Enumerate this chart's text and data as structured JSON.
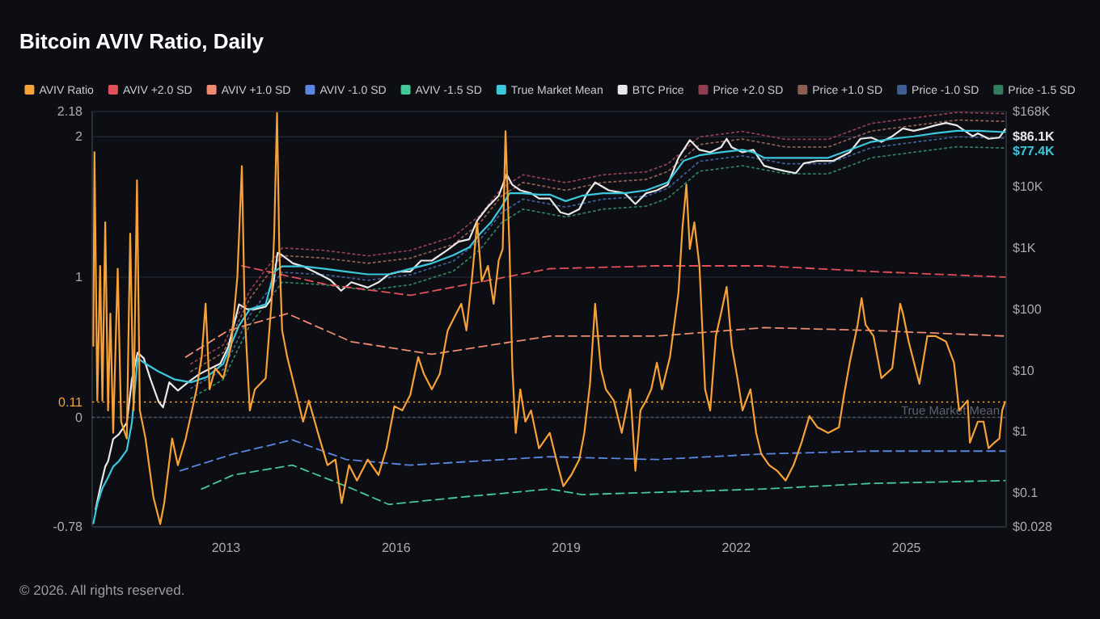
{
  "chart_data": {
    "type": "line",
    "title": "Bitcoin AVIV Ratio, Daily",
    "annotations": [
      "© 2026. All rights reserved."
    ],
    "xlim": [
      2010.64,
      2026.76
    ],
    "xticks": [
      2013,
      2016,
      2019,
      2022,
      2025
    ],
    "ylim": [
      -0.78,
      2.18
    ],
    "yticks": [
      -0.78,
      0,
      1,
      2,
      2.18
    ],
    "y2lim": [
      0.028,
      168000
    ],
    "y2ticks": [
      {
        "value": 0.028,
        "label": "$0.028"
      },
      {
        "value": 0.1,
        "label": "$0.1"
      },
      {
        "value": 1,
        "label": "$1"
      },
      {
        "value": 10,
        "label": "$10"
      },
      {
        "value": 100,
        "label": "$100"
      },
      {
        "value": 1000,
        "label": "$1K"
      },
      {
        "value": 10000,
        "label": "$10K"
      },
      {
        "value": 168000,
        "label": "$168K"
      }
    ],
    "log": "y2",
    "grid": "y",
    "legend": "top",
    "ref_lines": [
      {
        "axis": "y",
        "value": 0.11,
        "label": "0.11",
        "color": "#f7a136",
        "line_style": "dotted"
      },
      {
        "axis": "y",
        "value": 0,
        "label": "True Market Mean",
        "line_style": "dotted"
      }
    ],
    "series": [
      {
        "name": "AVIV Ratio",
        "color": "#f7a136",
        "line_style": "solid",
        "x": [
          2010.66,
          2010.68,
          2010.73,
          2010.78,
          2010.82,
          2010.87,
          2010.92,
          2010.96,
          2011.01,
          2011.09,
          2011.15,
          2011.25,
          2011.31,
          2011.37,
          2011.43,
          2011.48,
          2011.58,
          2011.72,
          2011.84,
          2011.91,
          2012.05,
          2012.15,
          2012.29,
          2012.48,
          2012.57,
          2012.64,
          2012.71,
          2012.81,
          2012.95,
          2013.09,
          2013.2,
          2013.28,
          2013.33,
          2013.42,
          2013.51,
          2013.7,
          2013.8,
          2013.85,
          2013.9,
          2013.94,
          2013.99,
          2014.08,
          2014.22,
          2014.36,
          2014.46,
          2014.65,
          2014.79,
          2014.93,
          2015.04,
          2015.17,
          2015.31,
          2015.5,
          2015.69,
          2015.83,
          2015.97,
          2016.11,
          2016.25,
          2016.39,
          2016.49,
          2016.63,
          2016.77,
          2016.91,
          2017.06,
          2017.15,
          2017.24,
          2017.34,
          2017.43,
          2017.51,
          2017.62,
          2017.72,
          2017.81,
          2017.88,
          2017.93,
          2018.0,
          2018.05,
          2018.11,
          2018.19,
          2018.28,
          2018.38,
          2018.52,
          2018.71,
          2018.85,
          2018.95,
          2019.09,
          2019.23,
          2019.32,
          2019.42,
          2019.51,
          2019.61,
          2019.7,
          2019.84,
          2019.98,
          2020.13,
          2020.22,
          2020.31,
          2020.41,
          2020.5,
          2020.6,
          2020.69,
          2020.83,
          2020.98,
          2021.05,
          2021.12,
          2021.18,
          2021.26,
          2021.35,
          2021.45,
          2021.54,
          2021.64,
          2021.73,
          2021.83,
          2021.92,
          2022.02,
          2022.11,
          2022.25,
          2022.35,
          2022.44,
          2022.58,
          2022.72,
          2022.87,
          2023.01,
          2023.15,
          2023.29,
          2023.43,
          2023.62,
          2023.81,
          2023.9,
          2024.0,
          2024.14,
          2024.21,
          2024.28,
          2024.42,
          2024.56,
          2024.75,
          2024.89,
          2024.94,
          2025.04,
          2025.23,
          2025.37,
          2025.51,
          2025.7,
          2025.84,
          2025.93,
          2026.08,
          2026.12,
          2026.26,
          2026.36,
          2026.45,
          2026.55,
          2026.64,
          2026.69,
          2026.74
        ],
        "values": [
          0.51,
          1.89,
          0.12,
          1.08,
          0.12,
          1.39,
          0.05,
          0.74,
          -0.11,
          1.06,
          -0.03,
          -0.15,
          1.31,
          0.05,
          1.69,
          0.05,
          -0.15,
          -0.57,
          -0.76,
          -0.61,
          -0.15,
          -0.34,
          -0.15,
          0.2,
          0.43,
          0.81,
          0.2,
          0.35,
          0.28,
          0.51,
          1.0,
          1.79,
          0.74,
          0.05,
          0.2,
          0.28,
          0.81,
          1.31,
          2.17,
          1.2,
          0.62,
          0.43,
          0.2,
          -0.03,
          0.12,
          -0.15,
          -0.34,
          -0.3,
          -0.61,
          -0.34,
          -0.45,
          -0.3,
          -0.41,
          -0.22,
          0.08,
          0.05,
          0.16,
          0.43,
          0.31,
          0.2,
          0.31,
          0.62,
          0.74,
          0.81,
          0.62,
          1.0,
          1.39,
          0.97,
          1.08,
          0.81,
          1.12,
          1.2,
          2.04,
          1.2,
          0.35,
          -0.11,
          0.2,
          -0.03,
          0.05,
          -0.22,
          -0.11,
          -0.34,
          -0.49,
          -0.41,
          -0.3,
          -0.11,
          0.24,
          0.81,
          0.35,
          0.2,
          0.12,
          -0.11,
          0.2,
          -0.38,
          0.05,
          0.12,
          0.2,
          0.39,
          0.2,
          0.43,
          0.89,
          1.35,
          1.66,
          1.2,
          1.39,
          1.08,
          0.2,
          0.05,
          0.58,
          0.74,
          0.93,
          0.51,
          0.28,
          0.05,
          0.2,
          -0.11,
          -0.26,
          -0.34,
          -0.38,
          -0.45,
          -0.34,
          -0.18,
          0.01,
          -0.07,
          -0.11,
          -0.07,
          0.16,
          0.39,
          0.66,
          0.85,
          0.66,
          0.58,
          0.28,
          0.35,
          0.81,
          0.74,
          0.54,
          0.24,
          0.58,
          0.58,
          0.54,
          0.39,
          0.05,
          0.12,
          -0.18,
          -0.03,
          -0.03,
          -0.22,
          -0.18,
          -0.15,
          0.05,
          0.11
        ]
      },
      {
        "name": "AVIV +2.0 SD",
        "color": "#e0505a",
        "line_style": "dashed",
        "x": [
          2013.28,
          2014.74,
          2016.25,
          2018.71,
          2020.6,
          2022.49,
          2024.38,
          2026.74
        ],
        "values": [
          1.08,
          0.95,
          0.87,
          1.06,
          1.08,
          1.08,
          1.04,
          1.0
        ]
      },
      {
        "name": "AVIV +1.0 SD",
        "color": "#f08a72",
        "line_style": "dashed",
        "x": [
          2012.29,
          2013.04,
          2014.08,
          2015.21,
          2016.63,
          2018.71,
          2020.6,
          2022.49,
          2024.38,
          2026.74
        ],
        "values": [
          0.43,
          0.62,
          0.74,
          0.54,
          0.45,
          0.58,
          0.58,
          0.64,
          0.62,
          0.58
        ]
      },
      {
        "name": "AVIV -1.0 SD",
        "color": "#5b86e0",
        "line_style": "dashed",
        "x": [
          2012.19,
          2013.13,
          2014.17,
          2015.12,
          2016.25,
          2018.71,
          2020.6,
          2022.49,
          2024.38,
          2026.74
        ],
        "values": [
          -0.38,
          -0.26,
          -0.16,
          -0.3,
          -0.34,
          -0.28,
          -0.3,
          -0.26,
          -0.24,
          -0.24
        ]
      },
      {
        "name": "AVIV -1.5 SD",
        "color": "#45c79a",
        "line_style": "dashed",
        "x": [
          2012.57,
          2013.13,
          2014.17,
          2015.12,
          2015.87,
          2017.1,
          2018.71,
          2019.28,
          2022.49,
          2024.38,
          2026.74
        ],
        "values": [
          -0.51,
          -0.41,
          -0.34,
          -0.49,
          -0.62,
          -0.57,
          -0.51,
          -0.55,
          -0.51,
          -0.47,
          -0.45
        ]
      },
      {
        "name": "True Market Mean",
        "color": "#3cc8dc",
        "line_style": "solid",
        "axis": "y2",
        "value_labels": [
          null,
          null,
          null,
          null,
          null,
          null,
          null,
          null,
          null,
          null,
          null,
          null,
          null,
          null,
          null,
          null,
          null,
          null,
          null,
          null,
          null,
          null,
          null,
          null,
          null,
          null,
          null,
          null,
          null,
          null,
          null,
          null,
          null,
          null,
          null,
          null,
          null,
          null,
          null,
          null,
          null,
          null,
          null,
          null,
          null,
          null,
          null,
          null,
          null,
          null,
          null,
          null,
          null,
          null,
          null,
          null,
          null,
          null,
          null,
          "$77.4K"
        ],
        "x": [
          2010.66,
          2010.73,
          2010.82,
          2010.92,
          2011.01,
          2011.11,
          2011.25,
          2011.34,
          2011.39,
          2011.44,
          2011.58,
          2011.81,
          2012.1,
          2012.38,
          2012.66,
          2012.95,
          2013.23,
          2013.42,
          2013.7,
          2013.85,
          2013.99,
          2014.36,
          2014.74,
          2015.12,
          2015.5,
          2015.87,
          2016.25,
          2016.63,
          2017.01,
          2017.29,
          2017.48,
          2017.67,
          2017.86,
          2018.0,
          2018.24,
          2018.52,
          2018.71,
          2018.99,
          2019.28,
          2019.65,
          2020.03,
          2020.41,
          2020.79,
          2021.07,
          2021.35,
          2021.73,
          2022.11,
          2022.3,
          2022.49,
          2022.87,
          2023.24,
          2023.62,
          2024.0,
          2024.38,
          2024.75,
          2025.13,
          2025.51,
          2025.89,
          2026.26,
          2026.74
        ],
        "values": [
          0.032,
          0.066,
          0.12,
          0.18,
          0.27,
          0.33,
          0.5,
          1.4,
          4.7,
          15.8,
          12.9,
          9.6,
          7.1,
          6.4,
          7.8,
          12.9,
          54,
          100,
          120,
          410,
          500,
          500,
          455,
          410,
          370,
          370,
          455,
          560,
          760,
          1020,
          1700,
          2600,
          4700,
          7800,
          7800,
          7400,
          7400,
          5800,
          7100,
          7800,
          7800,
          8700,
          11700,
          26300,
          32400,
          36300,
          39800,
          36300,
          29500,
          29500,
          29500,
          29500,
          39800,
          53700,
          60300,
          66100,
          74100,
          81300,
          81300,
          77400
        ]
      },
      {
        "name": "BTC Price",
        "color": "#e8e8e8",
        "line_style": "solid",
        "axis": "y2",
        "value_labels": [
          null,
          null,
          null,
          null,
          null,
          null,
          null,
          null,
          null,
          null,
          null,
          null,
          null,
          null,
          null,
          null,
          null,
          null,
          null,
          null,
          null,
          null,
          null,
          null,
          null,
          null,
          null,
          null,
          null,
          null,
          null,
          null,
          null,
          null,
          null,
          null,
          null,
          null,
          null,
          null,
          null,
          null,
          null,
          null,
          null,
          null,
          null,
          null,
          null,
          null,
          null,
          null,
          null,
          null,
          null,
          null,
          null,
          null,
          null,
          null,
          null,
          null,
          null,
          null,
          null,
          null,
          null,
          null,
          null,
          null,
          null,
          null,
          null,
          null,
          null,
          null,
          null,
          null,
          null,
          null,
          null,
          null,
          null,
          null,
          null,
          null,
          null,
          null,
          null,
          null,
          null,
          null,
          null,
          null,
          null,
          "$86.1K"
        ],
        "x": [
          2010.7,
          2010.78,
          2010.87,
          2010.92,
          2011.01,
          2011.11,
          2011.25,
          2011.34,
          2011.44,
          2011.55,
          2011.67,
          2011.81,
          2011.89,
          2012.0,
          2012.15,
          2012.33,
          2012.52,
          2012.71,
          2012.9,
          2013.04,
          2013.23,
          2013.37,
          2013.51,
          2013.7,
          2013.8,
          2013.91,
          2013.99,
          2014.18,
          2014.36,
          2014.65,
          2014.84,
          2015.03,
          2015.21,
          2015.5,
          2015.69,
          2015.87,
          2016.06,
          2016.25,
          2016.44,
          2016.63,
          2016.91,
          2017.1,
          2017.29,
          2017.43,
          2017.62,
          2017.81,
          2017.95,
          2018.05,
          2018.19,
          2018.38,
          2018.52,
          2018.71,
          2018.9,
          2019.04,
          2019.23,
          2019.37,
          2019.51,
          2019.75,
          2020.03,
          2020.22,
          2020.41,
          2020.6,
          2020.79,
          2020.98,
          2021.18,
          2021.35,
          2021.54,
          2021.73,
          2021.83,
          2021.92,
          2022.11,
          2022.3,
          2022.49,
          2022.68,
          2022.87,
          2023.05,
          2023.19,
          2023.43,
          2023.71,
          2024.0,
          2024.19,
          2024.38,
          2024.56,
          2024.75,
          2024.94,
          2025.13,
          2025.32,
          2025.51,
          2025.7,
          2025.89,
          2026.03,
          2026.17,
          2026.26,
          2026.45,
          2026.64,
          2026.74
        ],
        "values": [
          0.054,
          0.12,
          0.27,
          0.33,
          0.76,
          0.91,
          1.4,
          7.1,
          19.5,
          15.8,
          7.1,
          3.1,
          2.5,
          6.4,
          4.7,
          6.4,
          8.6,
          10.6,
          12.9,
          24,
          120,
          100,
          100,
          110,
          148,
          830,
          760,
          560,
          500,
          370,
          300,
          200,
          275,
          225,
          275,
          370,
          410,
          410,
          620,
          620,
          930,
          1260,
          1380,
          2800,
          4700,
          7100,
          15900,
          10700,
          8700,
          7800,
          6400,
          6400,
          3800,
          3500,
          4300,
          7800,
          11700,
          8700,
          7800,
          5200,
          7800,
          8700,
          10700,
          29500,
          57500,
          39800,
          36300,
          43700,
          60300,
          43700,
          36300,
          39800,
          21900,
          19500,
          17800,
          16600,
          24000,
          26300,
          26300,
          36300,
          60300,
          63100,
          53700,
          66100,
          89100,
          81300,
          89100,
          100000,
          109600,
          100000,
          81300,
          66100,
          74100,
          60300,
          63100,
          86100
        ]
      },
      {
        "name": "Price +2.0 SD",
        "color": "#8e3e50",
        "line_style": "dotted",
        "axis": "y2",
        "x": [
          2012.38,
          2012.95,
          2013.42,
          2013.99,
          2014.74,
          2015.5,
          2016.25,
          2017.01,
          2017.48,
          2017.86,
          2018.24,
          2018.99,
          2019.65,
          2020.41,
          2020.79,
          2021.35,
          2022.11,
          2022.87,
          2023.62,
          2024.38,
          2025.13,
          2025.89,
          2026.74
        ],
        "values": [
          12.8,
          26,
          200,
          1000,
          910,
          740,
          910,
          1520,
          3400,
          9400,
          15600,
          11600,
          15600,
          17400,
          23400,
          64800,
          79600,
          59000,
          59000,
          107400,
          132200,
          162600,
          154800
        ]
      },
      {
        "name": "Price +1.0 SD",
        "color": "#8c5e52",
        "line_style": "dotted",
        "axis": "y2",
        "x": [
          2012.38,
          2012.95,
          2013.42,
          2013.99,
          2014.74,
          2015.5,
          2016.25,
          2017.01,
          2017.48,
          2017.86,
          2018.24,
          2018.99,
          2019.65,
          2020.41,
          2020.79,
          2021.35,
          2022.11,
          2022.87,
          2023.62,
          2024.38,
          2025.13,
          2025.89,
          2026.74
        ],
        "values": [
          9.6,
          19.4,
          150,
          750,
          680,
          560,
          680,
          1140,
          2550,
          7050,
          11700,
          8700,
          11700,
          13100,
          17600,
          48600,
          59700,
          44300,
          44300,
          80600,
          99200,
          122000,
          116100
        ]
      },
      {
        "name": "Price -1.0 SD",
        "color": "#3d5e92",
        "line_style": "dotted",
        "axis": "y2",
        "x": [
          2012.38,
          2012.95,
          2013.42,
          2013.99,
          2014.74,
          2015.5,
          2016.25,
          2017.01,
          2017.48,
          2017.86,
          2018.24,
          2018.99,
          2019.65,
          2020.41,
          2020.79,
          2021.35,
          2022.11,
          2022.87,
          2023.62,
          2024.38,
          2025.13,
          2025.89,
          2026.74
        ],
        "values": [
          5.1,
          10.3,
          80,
          400,
          364,
          296,
          364,
          608,
          1360,
          3760,
          6240,
          4640,
          6240,
          6960,
          9360,
          25900,
          31800,
          23600,
          23600,
          43000,
          52900,
          65000,
          61900
        ]
      },
      {
        "name": "Price -1.5 SD",
        "color": "#2f7d5c",
        "line_style": "dotted",
        "axis": "y2",
        "x": [
          2012.38,
          2012.95,
          2013.42,
          2013.99,
          2014.74,
          2015.5,
          2016.25,
          2017.01,
          2017.48,
          2017.86,
          2018.24,
          2018.99,
          2019.65,
          2020.41,
          2020.79,
          2021.35,
          2022.11,
          2022.87,
          2023.62,
          2024.38,
          2025.13,
          2025.89,
          2026.74
        ],
        "values": [
          3.5,
          7.1,
          55,
          275,
          250,
          204,
          250,
          418,
          935,
          2585,
          4290,
          3190,
          4290,
          4790,
          6440,
          17800,
          21900,
          16200,
          16200,
          29500,
          36400,
          44700,
          42600
        ]
      }
    ]
  }
}
